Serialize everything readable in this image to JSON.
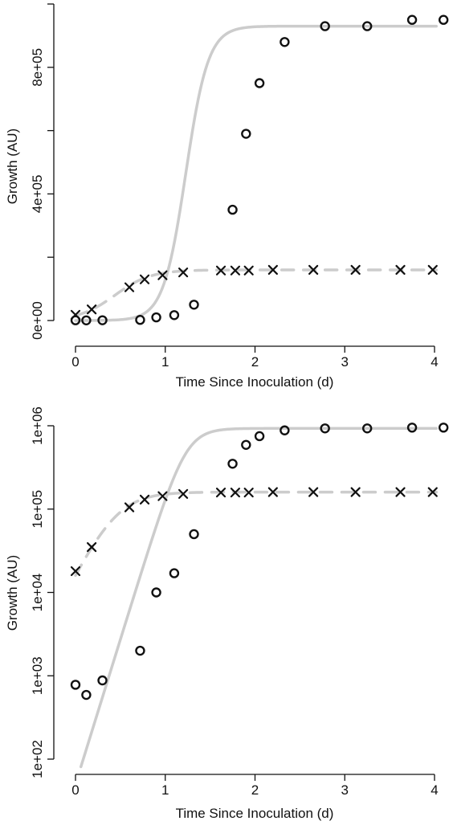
{
  "chart_data": [
    {
      "type": "scatter",
      "scale": "linear",
      "xlabel": "Time Since Inoculation (d)",
      "ylabel": "Growth (AU)",
      "xlim": [
        0,
        4
      ],
      "ylim": [
        0,
        1000000
      ],
      "x_ticks": [
        0,
        1,
        2,
        3,
        4
      ],
      "x_tick_labels": [
        "0",
        "1",
        "2",
        "3",
        "4"
      ],
      "y_ticks": [
        0,
        400000,
        800000
      ],
      "y_tick_labels": [
        "0e+00",
        "4e+05",
        "8e+05"
      ],
      "y_minor_ticks": [
        200000,
        600000,
        1000000
      ],
      "line_color": "#cccccc",
      "marker_color": "#111111",
      "series": [
        {
          "marker": "circle",
          "line_style": "solid",
          "x": [
            0.0,
            0.12,
            0.3,
            0.72,
            0.9,
            1.1,
            1.32,
            1.75,
            1.9,
            2.05,
            2.33,
            2.78,
            3.25,
            3.75,
            4.1
          ],
          "y": [
            780,
            590,
            880,
            2000,
            10000,
            17000,
            50000,
            350000,
            590000,
            750000,
            880000,
            930000,
            930000,
            950000,
            950000
          ]
        },
        {
          "marker": "cross",
          "line_style": "dashed",
          "x": [
            0.0,
            0.18,
            0.6,
            0.77,
            0.97,
            1.2,
            1.62,
            1.78,
            1.93,
            2.2,
            2.65,
            3.12,
            3.62,
            3.98
          ],
          "y": [
            18000,
            35000,
            105000,
            130000,
            143000,
            152000,
            158000,
            158000,
            158000,
            160000,
            160000,
            160000,
            160000,
            160000
          ]
        }
      ]
    },
    {
      "type": "scatter",
      "scale": "log",
      "xlabel": "Time Since Inoculation (d)",
      "ylabel": "Growth (AU)",
      "xlim": [
        0,
        4
      ],
      "ylim": [
        100,
        1000000
      ],
      "x_ticks": [
        0,
        1,
        2,
        3,
        4
      ],
      "x_tick_labels": [
        "0",
        "1",
        "2",
        "3",
        "4"
      ],
      "y_ticks": [
        100,
        1000,
        10000,
        100000,
        1000000
      ],
      "y_tick_labels": [
        "1e+02",
        "1e+03",
        "1e+04",
        "1e+05",
        "1e+06"
      ],
      "line_color": "#cccccc",
      "marker_color": "#111111",
      "series": [
        {
          "marker": "circle",
          "line_style": "solid",
          "x": [
            0.0,
            0.12,
            0.3,
            0.72,
            0.9,
            1.1,
            1.32,
            1.75,
            1.9,
            2.05,
            2.33,
            2.78,
            3.25,
            3.75,
            4.1
          ],
          "y": [
            780,
            590,
            880,
            2000,
            10000,
            17000,
            50000,
            350000,
            590000,
            750000,
            880000,
            930000,
            930000,
            950000,
            950000
          ]
        },
        {
          "marker": "cross",
          "line_style": "dashed",
          "x": [
            0.0,
            0.18,
            0.6,
            0.77,
            0.97,
            1.2,
            1.62,
            1.78,
            1.93,
            2.2,
            2.65,
            3.12,
            3.62,
            3.98
          ],
          "y": [
            18000,
            35000,
            105000,
            130000,
            143000,
            152000,
            158000,
            158000,
            158000,
            160000,
            160000,
            160000,
            160000,
            160000
          ]
        }
      ]
    }
  ]
}
